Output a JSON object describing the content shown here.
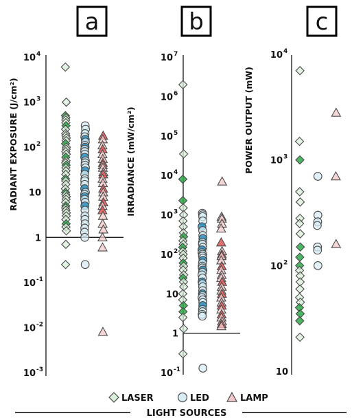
{
  "chart_data": [
    {
      "panel": "a",
      "type": "scatter",
      "ylabel": "RADIANT EXPOSURE (J/cm²)",
      "yscale": "log",
      "ylim": [
        0.001,
        10000
      ],
      "yticks": [
        {
          "v": 10000,
          "base": "10",
          "exp": "4"
        },
        {
          "v": 1000,
          "base": "10",
          "exp": "3"
        },
        {
          "v": 100,
          "base": "10",
          "exp": "2"
        },
        {
          "v": 10,
          "base": "10",
          "exp": ""
        },
        {
          "v": 1,
          "base": "1",
          "exp": ""
        },
        {
          "v": 0.1,
          "base": "10",
          "exp": "-1"
        },
        {
          "v": 0.01,
          "base": "10",
          "exp": "-2"
        },
        {
          "v": 0.001,
          "base": "10",
          "exp": "-3"
        }
      ],
      "reference_line": 1,
      "series": [
        {
          "name": "LASER",
          "values": [
            6000,
            1000,
            500,
            450,
            400,
            350,
            300,
            250,
            200,
            180,
            160,
            140,
            120,
            100,
            90,
            80,
            70,
            60,
            50,
            45,
            40,
            35,
            30,
            25,
            20,
            18,
            15,
            12,
            10,
            9,
            8,
            7,
            6,
            5,
            4.5,
            4,
            3.5,
            3,
            2.5,
            2,
            1.7,
            1.4,
            0.7,
            0.25
          ],
          "highlighted": [
            500,
            300,
            120,
            60,
            40,
            20,
            10,
            5,
            2
          ]
        },
        {
          "name": "LED",
          "values": [
            300,
            250,
            200,
            170,
            150,
            130,
            110,
            100,
            90,
            80,
            70,
            60,
            50,
            45,
            40,
            35,
            30,
            25,
            20,
            18,
            15,
            12,
            10,
            9,
            8,
            7,
            6,
            5,
            4,
            3,
            2.5,
            2,
            1.6,
            1.3,
            1,
            0.25
          ],
          "highlighted": [
            150,
            100,
            60,
            30,
            12,
            8,
            5
          ]
        },
        {
          "name": "LAMP",
          "values": [
            180,
            150,
            110,
            90,
            70,
            55,
            45,
            40,
            35,
            28,
            25,
            20,
            16,
            12,
            10,
            8,
            6,
            5,
            4,
            3,
            2,
            1.5,
            1,
            0.6,
            0.008
          ],
          "highlighted": [
            180,
            90,
            45,
            25,
            12,
            6,
            4
          ]
        }
      ]
    },
    {
      "panel": "b",
      "type": "scatter",
      "ylabel": "IRRADIANCE (mW/cm²)",
      "yscale": "log",
      "ylim": [
        0.1,
        10000000
      ],
      "yticks": [
        {
          "v": 10000000,
          "base": "10",
          "exp": "7"
        },
        {
          "v": 1000000,
          "base": "10",
          "exp": "6"
        },
        {
          "v": 100000,
          "base": "10",
          "exp": "5"
        },
        {
          "v": 10000,
          "base": "10",
          "exp": "4"
        },
        {
          "v": 1000,
          "base": "10",
          "exp": "3"
        },
        {
          "v": 100,
          "base": "10",
          "exp": "2"
        },
        {
          "v": 10,
          "base": "10",
          "exp": ""
        },
        {
          "v": 1,
          "base": "1",
          "exp": ""
        },
        {
          "v": 0.1,
          "base": "10",
          "exp": "-1"
        }
      ],
      "reference_line": 1,
      "series": [
        {
          "name": "LASER",
          "values": [
            2000000,
            35000,
            8000,
            2300,
            1500,
            1000,
            700,
            500,
            350,
            280,
            220,
            180,
            150,
            120,
            100,
            80,
            60,
            50,
            40,
            30,
            25,
            20,
            15,
            10,
            7,
            5,
            3.5,
            2.5,
            1.3,
            0.3
          ],
          "highlighted": [
            8000,
            2300,
            280,
            150,
            60,
            25,
            5,
            3.5
          ]
        },
        {
          "name": "LED",
          "values": [
            1100,
            1000,
            900,
            700,
            500,
            400,
            300,
            250,
            200,
            180,
            150,
            130,
            110,
            100,
            90,
            80,
            70,
            60,
            50,
            45,
            40,
            35,
            30,
            25,
            20,
            18,
            15,
            12,
            10,
            9,
            8,
            7,
            6,
            5,
            4,
            3.5,
            3,
            2.7,
            0.13
          ],
          "highlighted": [
            500,
            250,
            130,
            70,
            40,
            20,
            10,
            5
          ]
        },
        {
          "name": "LAMP",
          "values": [
            7000,
            900,
            800,
            600,
            450,
            200,
            120,
            100,
            90,
            70,
            50,
            40,
            30,
            25,
            20,
            15,
            12,
            10,
            8,
            6,
            5,
            4,
            3,
            2.5,
            2,
            1.7,
            1.5
          ],
          "highlighted": [
            200,
            100,
            50,
            20,
            10,
            5,
            3,
            1.7
          ]
        }
      ]
    },
    {
      "panel": "c",
      "type": "scatter",
      "ylabel": "POWER OUTPUT (mW)",
      "yscale": "log",
      "ylim": [
        10,
        10000
      ],
      "yticks": [
        {
          "v": 10000,
          "base": "10",
          "exp": "4"
        },
        {
          "v": 1000,
          "base": "10",
          "exp": "3"
        },
        {
          "v": 100,
          "base": "10",
          "exp": "2"
        },
        {
          "v": 10,
          "base": "10",
          "exp": ""
        }
      ],
      "series": [
        {
          "name": "LASER",
          "values": [
            7000,
            1500,
            1000,
            500,
            400,
            280,
            250,
            200,
            150,
            120,
            100,
            90,
            80,
            70,
            60,
            50,
            45,
            40,
            35,
            30,
            21
          ],
          "highlighted": [
            1000,
            150,
            120,
            100,
            40,
            35,
            30
          ]
        },
        {
          "name": "LED",
          "values": [
            700,
            300,
            260,
            240,
            150,
            140,
            100
          ],
          "highlighted": []
        },
        {
          "name": "LAMP",
          "values": [
            2800,
            700,
            160
          ],
          "highlighted": []
        }
      ]
    }
  ],
  "legend": [
    {
      "name": "LASER",
      "marker": "diamond"
    },
    {
      "name": "LED",
      "marker": "circle"
    },
    {
      "name": "LAMP",
      "marker": "triangle"
    }
  ],
  "footer": "LIGHT SOURCES",
  "colors": {
    "LASER_fill": "#d9efd9",
    "LASER_highlight": "#2fa84a",
    "LED_fill": "#d7ecf4",
    "LED_highlight": "#2a8fc0",
    "LAMP_fill": "#f2c7c7",
    "LAMP_highlight": "#e05555",
    "stroke": "#4a4a4a",
    "axis": "#000000"
  }
}
